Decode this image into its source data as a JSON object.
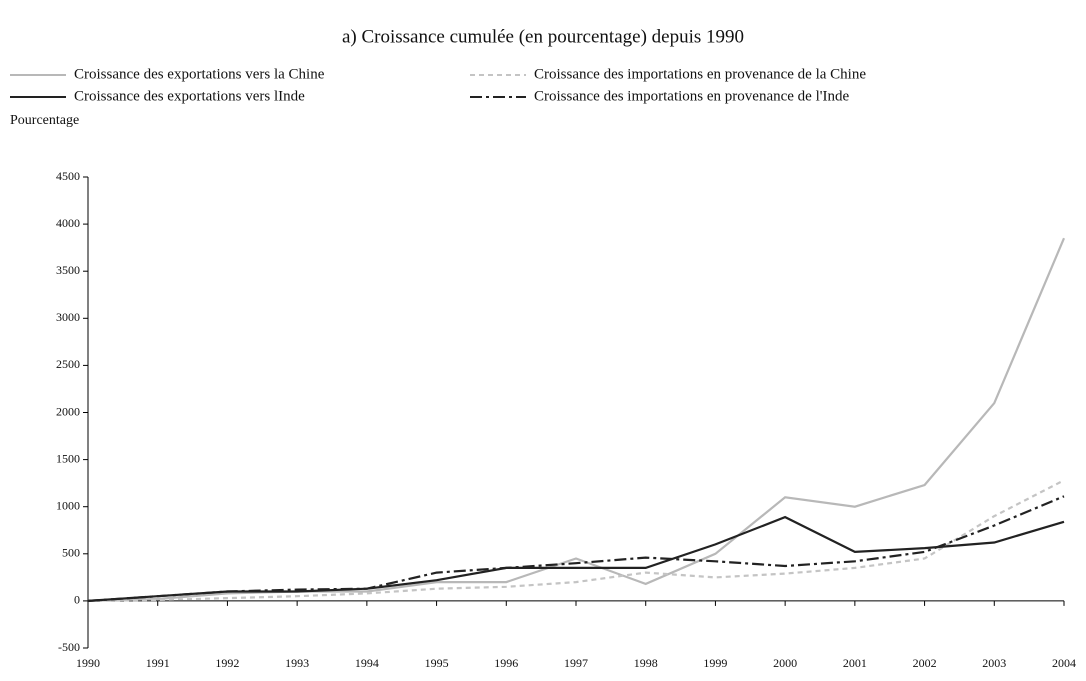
{
  "chart_data": {
    "type": "line",
    "title": "a) Croissance cumulée (en pourcentage) depuis 1990",
    "y_label": "Pourcentage",
    "x": [
      1990,
      1991,
      1992,
      1993,
      1994,
      1995,
      1996,
      1997,
      1998,
      1999,
      2000,
      2001,
      2002,
      2003,
      2004
    ],
    "xlim": [
      1990,
      2004
    ],
    "xticks": [
      1990,
      1991,
      1992,
      1993,
      1994,
      1995,
      1996,
      1997,
      1998,
      1999,
      2000,
      2001,
      2002,
      2003,
      2004
    ],
    "ylim": [
      -500,
      4500
    ],
    "yticks": [
      -500,
      0,
      500,
      1000,
      1500,
      2000,
      2500,
      3000,
      3500,
      4000,
      4500
    ],
    "series": [
      {
        "name": "Croissance des exportations vers la Chine",
        "color": "#b8b8b8",
        "dash": "solid",
        "values": [
          0,
          20,
          80,
          100,
          100,
          200,
          200,
          450,
          180,
          500,
          1100,
          1000,
          1230,
          2100,
          3850
        ]
      },
      {
        "name": "Croissance des importations en provenance de la Chine",
        "color": "#c4c4c4",
        "dash": "dashed",
        "values": [
          0,
          10,
          30,
          50,
          80,
          130,
          150,
          200,
          300,
          250,
          290,
          350,
          450,
          900,
          1280
        ]
      },
      {
        "name": "Croissance des exportations vers lInde",
        "color": "#222222",
        "dash": "solid",
        "values": [
          0,
          50,
          100,
          100,
          130,
          220,
          350,
          350,
          350,
          600,
          890,
          520,
          560,
          620,
          840
        ]
      },
      {
        "name": "Croissance des importations en provenance de l'Inde",
        "color": "#222222",
        "dash": "dashdot",
        "values": [
          0,
          50,
          100,
          120,
          130,
          300,
          350,
          400,
          460,
          420,
          370,
          420,
          520,
          800,
          1110
        ]
      }
    ]
  }
}
